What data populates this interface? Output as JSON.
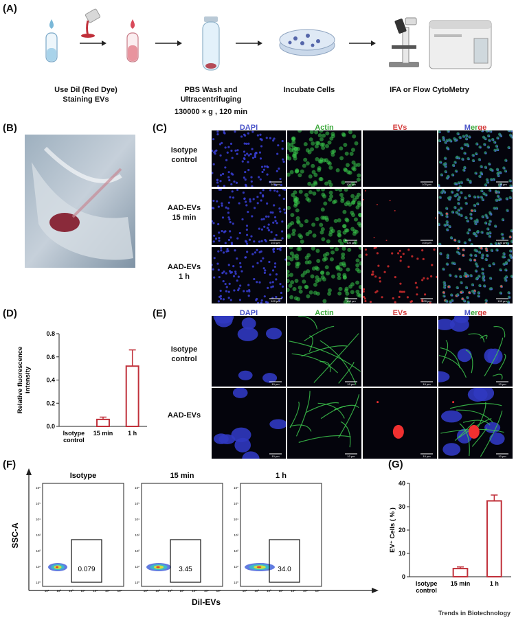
{
  "panel_letters": {
    "A": "(A)",
    "B": "(B)",
    "C": "(C)",
    "D": "(D)",
    "E": "(E)",
    "F": "(F)",
    "G": "(G)"
  },
  "workflow": {
    "step1": {
      "line1": "Use Dil (Red Dye)",
      "line2": "Staining EVs"
    },
    "step2": {
      "line1": "PBS Wash and",
      "line2": "Ultracentrifuging",
      "line3": "130000 × g , 120 min"
    },
    "step3": {
      "line1": "Incubate Cells"
    },
    "step4": {
      "line1": "IFA or Flow CytoMetry"
    }
  },
  "microscopy_c": {
    "channels": [
      "DAPI",
      "Actin",
      "EVs",
      "Merge"
    ],
    "merge_parts": [
      "M",
      "e",
      "r",
      "g",
      "e"
    ],
    "rows": [
      {
        "line1": "Isotype",
        "line2": "control"
      },
      {
        "line1": "AAD-EVs",
        "line2": "15 min"
      },
      {
        "line1": "AAD-EVs",
        "line2": "1 h"
      }
    ],
    "scale": "100 µm"
  },
  "microscopy_e": {
    "channels": [
      "DAPI",
      "Actin",
      "EVs",
      "Merge"
    ],
    "rows": [
      {
        "line1": "Isotype",
        "line2": "control"
      },
      {
        "line1": "AAD-EVs",
        "line2": ""
      }
    ],
    "scale": "10 µm"
  },
  "chart_data": [
    {
      "id": "D",
      "type": "bar",
      "categories": [
        "Isotype control",
        "15 min",
        "1 h"
      ],
      "category_lines": [
        [
          "Isotype",
          "control"
        ],
        [
          "15 min"
        ],
        [
          "1 h"
        ]
      ],
      "values": [
        0.0,
        0.06,
        0.52
      ],
      "errors": [
        0.0,
        0.02,
        0.14
      ],
      "ylabel_lines": [
        "Relative fluorescence",
        "intensity"
      ],
      "ylim": [
        0,
        0.8
      ],
      "yticks": [
        "0.0",
        "0.2",
        "0.4",
        "0.6",
        "0.8"
      ],
      "color": "#c0303a"
    },
    {
      "id": "G",
      "type": "bar",
      "categories": [
        "Isotype control",
        "15 min",
        "1 h"
      ],
      "category_lines": [
        [
          "Isotype",
          "control"
        ],
        [
          "15 min"
        ],
        [
          "1 h"
        ]
      ],
      "values": [
        0.0,
        3.5,
        32.5
      ],
      "errors": [
        0.0,
        0.7,
        2.5
      ],
      "ylabel": "EV⁺ Cells ( % )",
      "ylim": [
        0,
        40
      ],
      "yticks": [
        "0",
        "10",
        "20",
        "30",
        "40"
      ],
      "color": "#c0303a"
    },
    {
      "id": "F",
      "type": "scatter",
      "xlabel": "Dil-EVs",
      "ylabel": "SSC-A",
      "plots": [
        {
          "title": "Isotype",
          "gate_value": "0.079"
        },
        {
          "title": "15 min",
          "gate_value": "3.45"
        },
        {
          "title": "1 h",
          "gate_value": "34.0"
        }
      ],
      "x_ticks": [
        "10¹",
        "10²",
        "10³",
        "10⁴",
        "10⁵",
        "10⁶",
        "10⁷"
      ],
      "y_ticks": [
        "10⁶",
        "10⁵",
        "10⁴",
        "10³",
        "10²",
        "10¹",
        "10⁰"
      ]
    }
  ],
  "credit": "Trends in Biotechnology"
}
